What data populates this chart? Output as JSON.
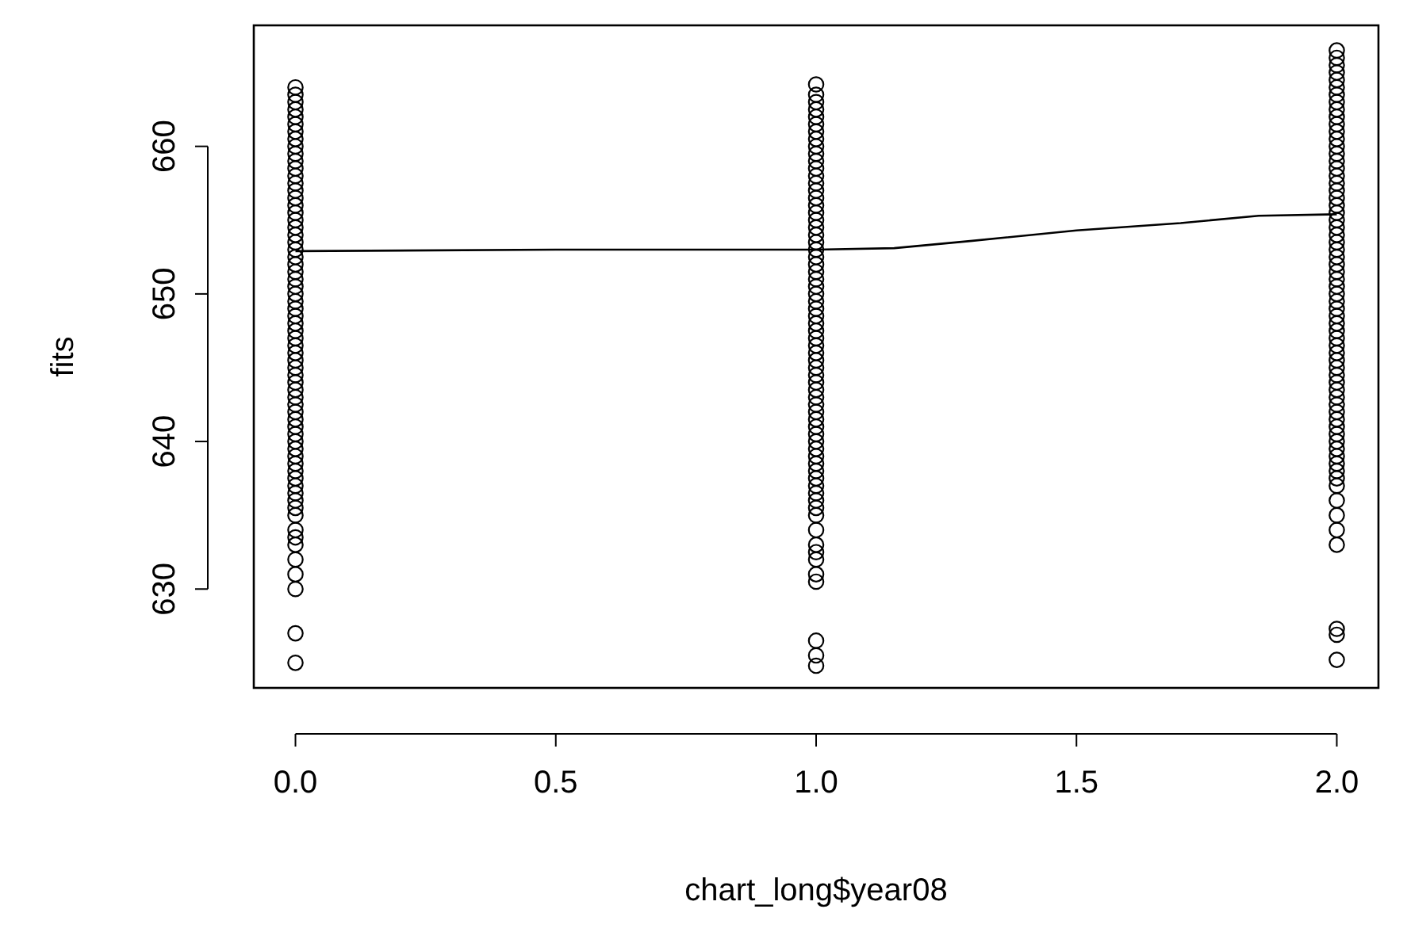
{
  "chart_data": {
    "type": "scatter",
    "xlabel": "chart_long$year08",
    "ylabel": "fits",
    "xlim": [
      -0.08,
      2.08
    ],
    "ylim": [
      623.3,
      668.2
    ],
    "xticks": [
      {
        "value": 0,
        "label": "0.0"
      },
      {
        "value": 0.5,
        "label": "0.5"
      },
      {
        "value": 1,
        "label": "1.0"
      },
      {
        "value": 1.5,
        "label": "1.5"
      },
      {
        "value": 2,
        "label": "2.0"
      }
    ],
    "yticks": [
      630,
      640,
      650,
      660
    ],
    "grid": false,
    "marker": "circle",
    "series": [
      {
        "color": "#000000",
        "x": [
          0,
          0,
          0,
          0,
          0,
          0,
          0,
          0,
          0,
          0,
          0,
          0,
          0,
          0,
          0,
          0,
          0,
          0,
          0,
          0,
          0,
          0,
          0,
          0,
          0,
          0,
          0,
          0,
          0,
          0,
          0,
          0,
          0,
          0,
          0,
          0,
          0,
          0,
          0,
          0,
          0,
          0,
          0,
          0,
          0,
          0,
          0,
          0,
          0,
          0,
          0,
          0,
          0,
          0,
          0,
          0,
          0,
          0,
          0,
          0,
          0,
          0,
          0,
          0,
          0,
          0,
          0
        ],
        "values": [
          664,
          663.5,
          663,
          662.5,
          662,
          661.5,
          661,
          660.5,
          660,
          659.5,
          659,
          658.5,
          658,
          657.5,
          657,
          656.5,
          656,
          655.5,
          655,
          654.5,
          654,
          653.5,
          653,
          652.5,
          652,
          651.5,
          651,
          650.5,
          650,
          649.5,
          649,
          648.5,
          648,
          647.5,
          647,
          646.5,
          646,
          645.5,
          645,
          644.5,
          644,
          643.5,
          643,
          642.5,
          642,
          641.5,
          641,
          640.5,
          640,
          639.5,
          639,
          638.5,
          638,
          637.5,
          637,
          636.5,
          636,
          635.5,
          635,
          634,
          633.5,
          633,
          632,
          631,
          630,
          627,
          625
        ]
      },
      {
        "color": "#000000",
        "x": [
          1,
          1,
          1,
          1,
          1,
          1,
          1,
          1,
          1,
          1,
          1,
          1,
          1,
          1,
          1,
          1,
          1,
          1,
          1,
          1,
          1,
          1,
          1,
          1,
          1,
          1,
          1,
          1,
          1,
          1,
          1,
          1,
          1,
          1,
          1,
          1,
          1,
          1,
          1,
          1,
          1,
          1,
          1,
          1,
          1,
          1,
          1,
          1,
          1,
          1,
          1,
          1,
          1,
          1,
          1,
          1,
          1,
          1,
          1,
          1,
          1,
          1,
          1,
          1,
          1,
          1,
          1,
          1
        ],
        "values": [
          664.2,
          663.5,
          663,
          662.5,
          662,
          661.5,
          661,
          660.5,
          660,
          659.5,
          659,
          658.5,
          658,
          657.5,
          657,
          656.5,
          656,
          655.5,
          655,
          654.5,
          654,
          653.5,
          653,
          652.5,
          652,
          651.5,
          651,
          650.5,
          650,
          649.5,
          649,
          648.5,
          648,
          647.5,
          647,
          646.5,
          646,
          645.5,
          645,
          644.5,
          644,
          643.5,
          643,
          642.5,
          642,
          641.5,
          641,
          640.5,
          640,
          639.5,
          639,
          638.5,
          638,
          637.5,
          637,
          636.5,
          636,
          635.5,
          635,
          634,
          633,
          632.5,
          632,
          631,
          630.5,
          626.5,
          625.5,
          624.8
        ]
      },
      {
        "color": "#000000",
        "x": [
          2,
          2,
          2,
          2,
          2,
          2,
          2,
          2,
          2,
          2,
          2,
          2,
          2,
          2,
          2,
          2,
          2,
          2,
          2,
          2,
          2,
          2,
          2,
          2,
          2,
          2,
          2,
          2,
          2,
          2,
          2,
          2,
          2,
          2,
          2,
          2,
          2,
          2,
          2,
          2,
          2,
          2,
          2,
          2,
          2,
          2,
          2,
          2,
          2,
          2,
          2,
          2,
          2,
          2,
          2,
          2,
          2,
          2,
          2,
          2,
          2,
          2,
          2,
          2,
          2,
          2,
          2
        ],
        "values": [
          666.5,
          666,
          665.5,
          665,
          664.5,
          664,
          663.5,
          663,
          662.5,
          662,
          661.5,
          661,
          660.5,
          660,
          659.5,
          659,
          658.5,
          658,
          657.5,
          657,
          656.5,
          656,
          655.5,
          655,
          654.5,
          654,
          653.5,
          653,
          652.5,
          652,
          651.5,
          651,
          650.5,
          650,
          649.5,
          649,
          648.5,
          648,
          647.5,
          647,
          646.5,
          646,
          645.5,
          645,
          644.5,
          644,
          643.5,
          643,
          642.5,
          642,
          641.5,
          641,
          640.5,
          640,
          639.5,
          639,
          638.5,
          638,
          637.5,
          637,
          636,
          635,
          634,
          633,
          627.3,
          626.9,
          625.2
        ]
      },
      {
        "type": "line",
        "color": "#000000",
        "line_style": "solid",
        "marker": "none",
        "x": [
          0,
          0.5,
          1,
          1.15,
          1.3,
          1.5,
          1.7,
          1.85,
          2
        ],
        "values": [
          652.9,
          653.0,
          653.0,
          653.1,
          653.6,
          654.3,
          654.8,
          655.3,
          655.4
        ]
      }
    ]
  }
}
